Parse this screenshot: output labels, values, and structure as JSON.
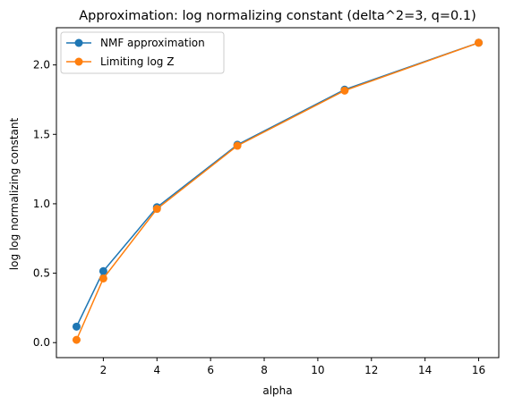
{
  "chart_data": {
    "type": "line",
    "title": "Approximation: log normalizing constant (delta^2=3, q=0.1)",
    "xlabel": "alpha",
    "ylabel": "log log normalizing constant",
    "xlim": [
      0.25,
      16.75
    ],
    "ylim": [
      -0.108,
      2.268
    ],
    "xticks": [
      2,
      4,
      6,
      8,
      10,
      12,
      14,
      16
    ],
    "xtick_labels": [
      "2",
      "4",
      "6",
      "8",
      "10",
      "12",
      "14",
      "16"
    ],
    "yticks": [
      0.0,
      0.5,
      1.0,
      1.5,
      2.0
    ],
    "ytick_labels": [
      "0.0",
      "0.5",
      "1.0",
      "1.5",
      "2.0"
    ],
    "grid": false,
    "legend_position": "top-left",
    "x": [
      1,
      2,
      4,
      7,
      11,
      16
    ],
    "series": [
      {
        "name": "NMF approximation",
        "color": "#1f77b4",
        "marker": "circle",
        "values": [
          0.115,
          0.515,
          0.975,
          1.425,
          1.822,
          2.16
        ]
      },
      {
        "name": "Limiting log Z",
        "color": "#ff7f0e",
        "marker": "circle",
        "values": [
          0.02,
          0.462,
          0.963,
          1.418,
          1.815,
          2.16
        ]
      }
    ]
  }
}
